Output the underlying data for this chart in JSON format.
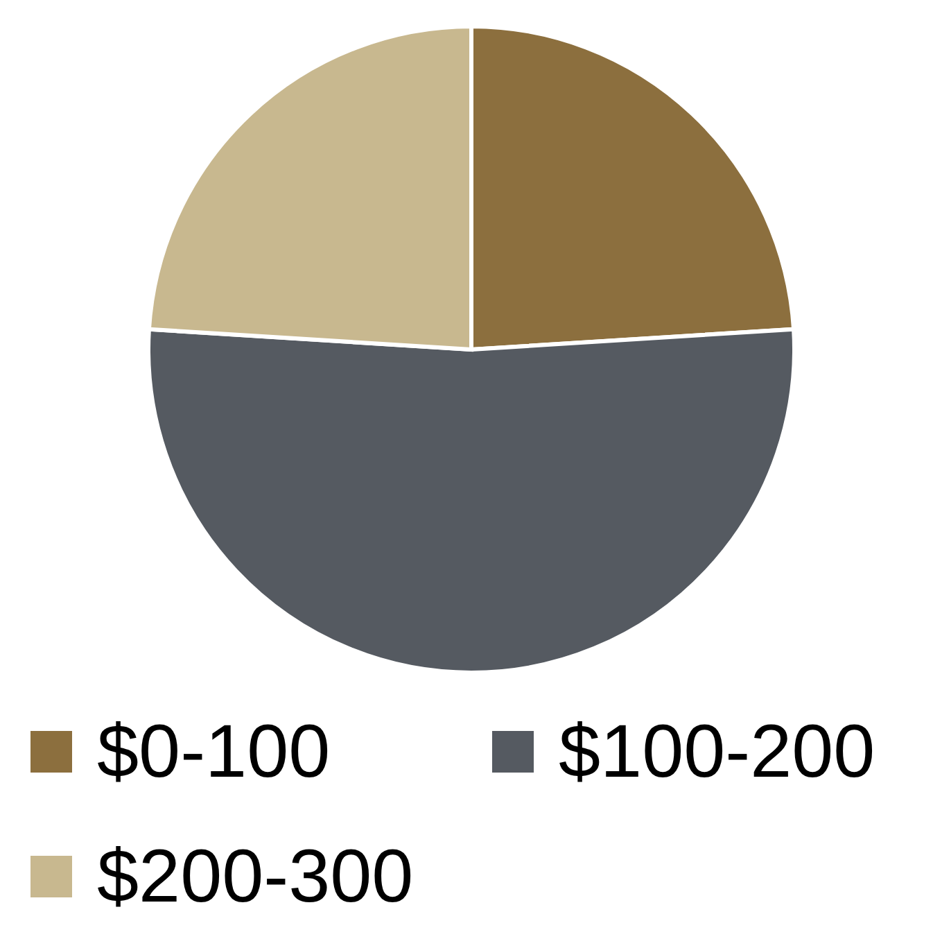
{
  "chart_data": {
    "type": "pie",
    "categories": [
      "$0-100",
      "$100-200",
      "$200-300"
    ],
    "values": [
      24,
      52,
      24
    ],
    "colors": [
      "#8c6f3e",
      "#555a61",
      "#c8b88f"
    ],
    "legend": "bottom"
  }
}
